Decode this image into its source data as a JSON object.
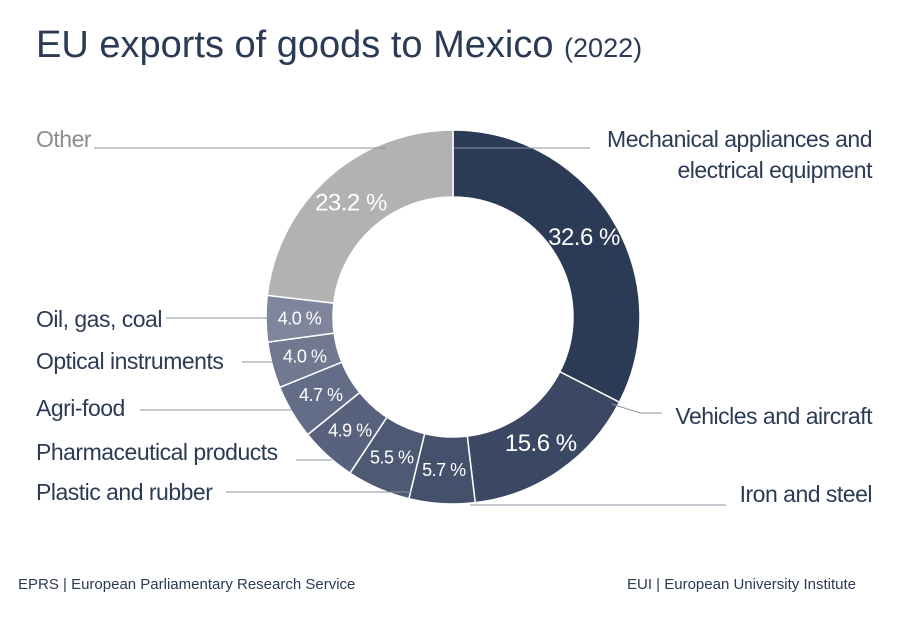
{
  "chart_data": {
    "type": "donut",
    "title": "EU exports of goods to Mexico",
    "subtitle": "(2022)",
    "categories": [
      "Mechanical appliances and electrical equipment",
      "Vehicles and aircraft",
      "Iron and steel",
      "Plastic and rubber",
      "Pharmaceutical products",
      "Agri-food",
      "Optical instruments",
      "Oil, gas, coal",
      "Other"
    ],
    "values": [
      32.6,
      15.6,
      5.7,
      5.5,
      4.9,
      4.7,
      4.0,
      4.0,
      23.2
    ],
    "value_labels": [
      "32.6 %",
      "15.6 %",
      "5.7 %",
      "5.5 %",
      "4.9 %",
      "4.7 %",
      "4.0 %",
      "4.0 %",
      "23.2 %"
    ],
    "colors": [
      "#2b3a55",
      "#3b4863",
      "#45516c",
      "#4e5974",
      "#58627d",
      "#636d87",
      "#717991",
      "#7f869c",
      "#b2b2b2"
    ],
    "sources": [
      "EPRS | European Parliamentary Research Service",
      "EUI | European University Institute"
    ]
  }
}
